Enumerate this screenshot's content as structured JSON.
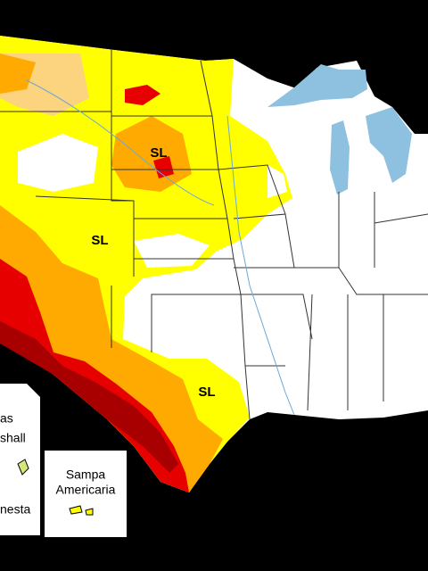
{
  "map": {
    "labels": [
      "SL",
      "SL",
      "SL"
    ],
    "insets": [
      {
        "lines": [
          "as",
          "shall",
          "nesta"
        ]
      },
      {
        "lines": [
          "Sampa",
          "Americaria"
        ]
      }
    ]
  }
}
